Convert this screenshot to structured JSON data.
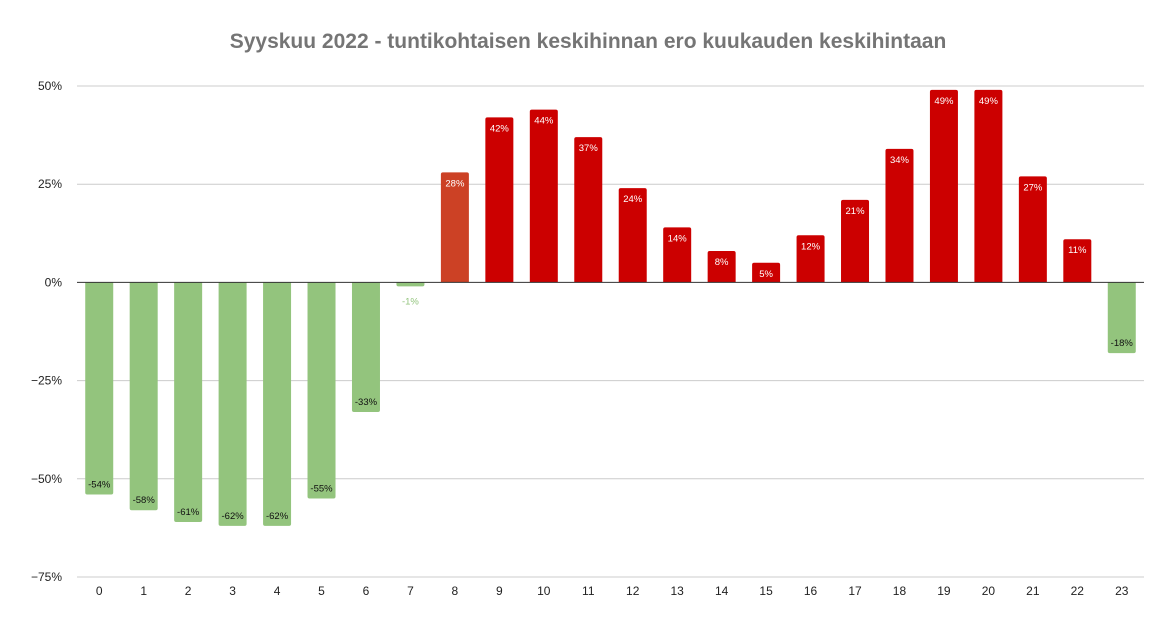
{
  "chart_data": {
    "type": "bar",
    "title": "Syyskuu 2022 - tuntikohtaisen keskihinnan ero kuukauden keskihintaan",
    "xlabel": "",
    "ylabel": "",
    "categories": [
      "0",
      "1",
      "2",
      "3",
      "4",
      "5",
      "6",
      "7",
      "8",
      "9",
      "10",
      "11",
      "12",
      "13",
      "14",
      "15",
      "16",
      "17",
      "18",
      "19",
      "20",
      "21",
      "22",
      "23"
    ],
    "values": [
      -54,
      -58,
      -61,
      -62,
      -62,
      -55,
      -33,
      -1,
      28,
      42,
      44,
      37,
      24,
      14,
      8,
      5,
      12,
      21,
      34,
      49,
      49,
      27,
      11,
      -18
    ],
    "data_labels": [
      "-54%",
      "-58%",
      "-61%",
      "-62%",
      "-62%",
      "-55%",
      "-33%",
      "-1%",
      "28%",
      "42%",
      "44%",
      "37%",
      "24%",
      "14%",
      "8%",
      "5%",
      "12%",
      "21%",
      "34%",
      "49%",
      "49%",
      "27%",
      "11%",
      "-18%"
    ],
    "bar_colors": [
      "#93c47d",
      "#93c47d",
      "#93c47d",
      "#93c47d",
      "#93c47d",
      "#93c47d",
      "#93c47d",
      "#93c47d",
      "#cc4125",
      "#cc0000",
      "#cc0000",
      "#cc0000",
      "#cc0000",
      "#cc0000",
      "#cc0000",
      "#cc0000",
      "#cc0000",
      "#cc0000",
      "#cc0000",
      "#cc0000",
      "#cc0000",
      "#cc0000",
      "#cc0000",
      "#93c47d"
    ],
    "ylim": [
      -75,
      50
    ],
    "yticks": [
      50,
      25,
      0,
      -25,
      -50,
      -75
    ],
    "ytick_labels": [
      "50%",
      "25%",
      "0%",
      "−25%",
      "−50%",
      "−75%"
    ],
    "grid": true,
    "legend": "none"
  }
}
